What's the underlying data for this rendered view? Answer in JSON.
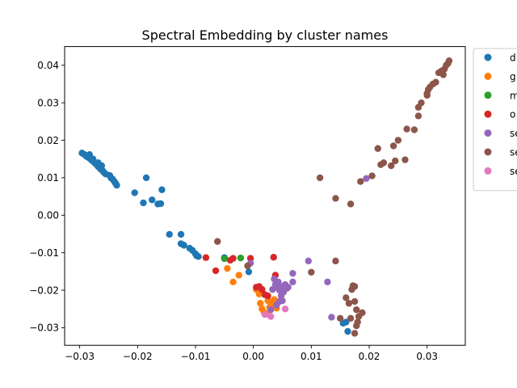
{
  "chart_data": {
    "type": "scatter",
    "title": "Spectral Embedding by cluster names",
    "xlabel": "",
    "ylabel": "",
    "xlim": [
      -0.0326,
      0.0366
    ],
    "ylim": [
      -0.0347,
      0.045
    ],
    "x_ticks": [
      -0.03,
      -0.02,
      -0.01,
      0.0,
      0.01,
      0.02,
      0.03
    ],
    "x_tick_labels": [
      "−0.03",
      "−0.02",
      "−0.01",
      "0.00",
      "0.01",
      "0.02",
      "0.03"
    ],
    "y_ticks": [
      -0.03,
      -0.02,
      -0.01,
      0.0,
      0.01,
      0.02,
      0.03,
      0.04
    ],
    "y_tick_labels": [
      "−0.03",
      "−0.02",
      "−0.01",
      "0.00",
      "0.01",
      "0.02",
      "0.03",
      "0.04"
    ],
    "grid": false,
    "legend_position": "upper right outside",
    "series": [
      {
        "name": "d",
        "color": "#1f77b4",
        "points": [
          [
            -0.0296,
            0.0166
          ],
          [
            -0.0293,
            0.0163
          ],
          [
            -0.029,
            0.016
          ],
          [
            -0.0288,
            0.0157
          ],
          [
            -0.0286,
            0.0155
          ],
          [
            -0.0283,
            0.0152
          ],
          [
            -0.028,
            0.0148
          ],
          [
            -0.0278,
            0.0145
          ],
          [
            -0.0275,
            0.0142
          ],
          [
            -0.0273,
            0.0138
          ],
          [
            -0.027,
            0.0134
          ],
          [
            -0.0268,
            0.013
          ],
          [
            -0.0266,
            0.0127
          ],
          [
            -0.0263,
            0.0122
          ],
          [
            -0.026,
            0.0118
          ],
          [
            -0.0258,
            0.0114
          ],
          [
            -0.0255,
            0.011
          ],
          [
            -0.0283,
            0.0162
          ],
          [
            -0.0277,
            0.015
          ],
          [
            -0.0268,
            0.014
          ],
          [
            -0.0262,
            0.0132
          ],
          [
            -0.0248,
            0.0106
          ],
          [
            -0.0246,
            0.01
          ],
          [
            -0.0243,
            0.0096
          ],
          [
            -0.024,
            0.009
          ],
          [
            -0.0238,
            0.0085
          ],
          [
            -0.0236,
            0.008
          ],
          [
            -0.0205,
            0.006
          ],
          [
            -0.019,
            0.0033
          ],
          [
            -0.0185,
            0.01
          ],
          [
            -0.0175,
            0.0041
          ],
          [
            -0.0165,
            0.003
          ],
          [
            -0.016,
            0.0031
          ],
          [
            -0.0158,
            0.0068
          ],
          [
            -0.0145,
            -0.0051
          ],
          [
            -0.0125,
            -0.0051
          ],
          [
            -0.0125,
            -0.0076
          ],
          [
            -0.012,
            -0.008
          ],
          [
            -0.011,
            -0.0088
          ],
          [
            -0.0105,
            -0.0094
          ],
          [
            -0.01,
            -0.0103
          ],
          [
            -0.0098,
            -0.0108
          ],
          [
            -0.0095,
            -0.011
          ],
          [
            -0.005,
            -0.0113
          ],
          [
            -0.0008,
            -0.0151
          ],
          [
            0.0155,
            -0.0288
          ],
          [
            0.016,
            -0.0285
          ],
          [
            0.0163,
            -0.031
          ]
        ]
      },
      {
        "name": "g",
        "color": "#ff7f0e",
        "points": [
          [
            -0.0045,
            -0.0142
          ],
          [
            -0.0035,
            -0.0178
          ],
          [
            -0.0025,
            -0.016
          ],
          [
            0.0005,
            -0.0198
          ],
          [
            0.001,
            -0.021
          ],
          [
            0.0012,
            -0.0235
          ],
          [
            0.0015,
            -0.025
          ],
          [
            0.0018,
            -0.0258
          ],
          [
            0.0022,
            -0.0262
          ],
          [
            0.0025,
            -0.0228
          ],
          [
            0.0028,
            -0.0245
          ],
          [
            0.003,
            -0.0232
          ],
          [
            0.0033,
            -0.024
          ],
          [
            0.0036,
            -0.0225
          ],
          [
            0.0038,
            -0.0238
          ],
          [
            0.004,
            -0.0248
          ],
          [
            0.0043,
            -0.0232
          ]
        ]
      },
      {
        "name": "m",
        "color": "#2ca02c",
        "points": [
          [
            -0.005,
            -0.0116
          ],
          [
            -0.0022,
            -0.0114
          ]
        ]
      },
      {
        "name": "o",
        "color": "#d62728",
        "points": [
          [
            -0.0082,
            -0.0113
          ],
          [
            -0.0065,
            -0.0148
          ],
          [
            -0.004,
            -0.012
          ],
          [
            -0.0035,
            -0.0115
          ],
          [
            -0.0005,
            -0.0115
          ],
          [
            0.0005,
            -0.0192
          ],
          [
            0.001,
            -0.019
          ],
          [
            0.0015,
            -0.0198
          ],
          [
            0.002,
            -0.0212
          ],
          [
            0.0025,
            -0.0215
          ],
          [
            0.0035,
            -0.0112
          ],
          [
            0.0038,
            -0.016
          ],
          [
            0.004,
            -0.0178
          ],
          [
            0.0045,
            -0.0195
          ]
        ]
      },
      {
        "name": "se",
        "color": "#9467bd",
        "points": [
          [
            -0.0005,
            -0.0128
          ],
          [
            0.003,
            -0.0252
          ],
          [
            0.0033,
            -0.0198
          ],
          [
            0.0036,
            -0.017
          ],
          [
            0.0038,
            -0.0185
          ],
          [
            0.004,
            -0.0192
          ],
          [
            0.0043,
            -0.0178
          ],
          [
            0.0045,
            -0.02
          ],
          [
            0.0048,
            -0.0215
          ],
          [
            0.005,
            -0.019
          ],
          [
            0.0052,
            -0.0205
          ],
          [
            0.0055,
            -0.0185
          ],
          [
            0.0058,
            -0.0195
          ],
          [
            0.006,
            -0.0192
          ],
          [
            0.004,
            -0.024
          ],
          [
            0.0045,
            -0.023
          ],
          [
            0.005,
            -0.0228
          ],
          [
            0.0068,
            -0.0155
          ],
          [
            0.0068,
            -0.0178
          ],
          [
            0.0095,
            -0.0122
          ],
          [
            0.0128,
            -0.0178
          ],
          [
            0.0135,
            -0.0272
          ],
          [
            0.0195,
            0.0098
          ]
        ]
      },
      {
        "name": "se",
        "color": "#8c564b",
        "points": [
          [
            -0.0062,
            -0.007
          ],
          [
            -0.001,
            -0.0135
          ],
          [
            0.0115,
            0.01
          ],
          [
            0.01,
            -0.0152
          ],
          [
            0.0142,
            0.0045
          ],
          [
            0.0142,
            -0.0122
          ],
          [
            0.0168,
            0.003
          ],
          [
            0.0185,
            0.009
          ],
          [
            0.0205,
            0.0105
          ],
          [
            0.0215,
            0.0178
          ],
          [
            0.022,
            0.0135
          ],
          [
            0.0225,
            0.014
          ],
          [
            0.0238,
            0.0132
          ],
          [
            0.0242,
            0.0185
          ],
          [
            0.0245,
            0.0145
          ],
          [
            0.025,
            0.02
          ],
          [
            0.0262,
            0.0148
          ],
          [
            0.0265,
            0.023
          ],
          [
            0.0278,
            0.0228
          ],
          [
            0.0285,
            0.0265
          ],
          [
            0.0285,
            0.0288
          ],
          [
            0.029,
            0.03
          ],
          [
            0.03,
            0.0325
          ],
          [
            0.0302,
            0.0335
          ],
          [
            0.0305,
            0.0342
          ],
          [
            0.031,
            0.035
          ],
          [
            0.0315,
            0.0355
          ],
          [
            0.032,
            0.038
          ],
          [
            0.0325,
            0.0385
          ],
          [
            0.0328,
            0.0375
          ],
          [
            0.033,
            0.039
          ],
          [
            0.0333,
            0.04
          ],
          [
            0.0336,
            0.0405
          ],
          [
            0.0338,
            0.0412
          ],
          [
            0.03,
            0.032
          ],
          [
            0.015,
            -0.0275
          ],
          [
            0.016,
            -0.022
          ],
          [
            0.0165,
            -0.0235
          ],
          [
            0.0168,
            -0.0275
          ],
          [
            0.017,
            -0.0198
          ],
          [
            0.0172,
            -0.0188
          ],
          [
            0.0175,
            -0.019
          ],
          [
            0.0175,
            -0.023
          ],
          [
            0.0178,
            -0.0252
          ],
          [
            0.0178,
            -0.0295
          ],
          [
            0.018,
            -0.0285
          ],
          [
            0.0182,
            -0.027
          ],
          [
            0.0175,
            -0.0315
          ],
          [
            0.0188,
            -0.026
          ]
        ]
      },
      {
        "name": "se",
        "color": "#e377c2",
        "points": [
          [
            0.002,
            -0.0265
          ],
          [
            0.003,
            -0.027
          ],
          [
            0.0055,
            -0.025
          ]
        ]
      }
    ]
  }
}
